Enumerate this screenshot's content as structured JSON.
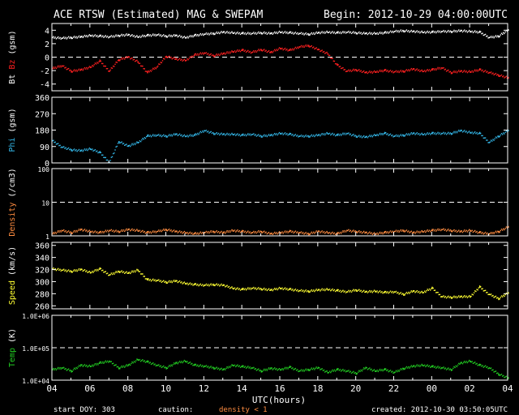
{
  "header": {
    "title": "ACE RTSW (Estimated) MAG & SWEPAM",
    "begin": "Begin: 2012-10-29 04:00:00UTC"
  },
  "footer": {
    "start_doy": "start DOY: 303",
    "caution": "caution:",
    "density_note": "density < 1",
    "created": "created: 2012-10-30 03:50:05UTC"
  },
  "colors": {
    "background": "#000000",
    "frame": "#ffffff",
    "bt": "#ffffff",
    "bz": "#ff2020",
    "phi": "#33b5e5",
    "density": "#ff8c40",
    "speed": "#ffff33",
    "temp": "#22cc22",
    "caution": "#ff8c40"
  },
  "chart_data": {
    "type": "line",
    "xlabel": "UTC(hours)",
    "x_ticks": [
      "04",
      "06",
      "08",
      "10",
      "12",
      "14",
      "16",
      "18",
      "20",
      "22",
      "00",
      "02",
      "04"
    ],
    "x_range_hours": [
      0,
      24
    ],
    "panels": [
      {
        "id": "mag",
        "ylabel_parts": [
          "Bt",
          "Bz",
          "(gsm)"
        ],
        "ylim": [
          -5,
          5
        ],
        "yticks": [
          "4",
          "2",
          "0",
          "-2",
          "-4"
        ],
        "ytick_values": [
          4,
          2,
          0,
          -2,
          -4
        ],
        "dashed_at": [
          0
        ],
        "series": [
          {
            "name": "Bt",
            "color_key": "bt",
            "x": [
              0,
              0.5,
              1,
              1.5,
              2,
              2.5,
              3,
              3.5,
              4,
              4.5,
              5,
              5.5,
              6,
              6.5,
              7,
              7.5,
              8,
              8.5,
              9,
              9.5,
              10,
              10.5,
              11,
              11.5,
              12,
              12.5,
              13,
              13.5,
              14,
              14.5,
              15,
              15.5,
              16,
              16.5,
              17,
              17.5,
              18,
              18.5,
              19,
              19.5,
              20,
              20.5,
              21,
              21.5,
              22,
              22.5,
              23,
              23.5,
              24
            ],
            "y": [
              3.0,
              2.9,
              3.0,
              3.1,
              3.3,
              3.2,
              3.1,
              3.3,
              3.4,
              3.1,
              3.3,
              3.4,
              3.2,
              3.3,
              3.0,
              3.3,
              3.5,
              3.6,
              3.8,
              3.7,
              3.6,
              3.6,
              3.7,
              3.6,
              3.8,
              3.7,
              3.6,
              3.5,
              3.7,
              3.8,
              3.7,
              3.8,
              3.7,
              3.6,
              3.6,
              3.7,
              3.9,
              4.0,
              3.9,
              3.8,
              3.8,
              3.9,
              3.9,
              4.0,
              3.9,
              3.8,
              3.0,
              3.2,
              4.1
            ]
          },
          {
            "name": "Bz",
            "color_key": "bz",
            "x": [
              0,
              0.5,
              1,
              1.5,
              2,
              2.5,
              3,
              3.5,
              4,
              4.5,
              5,
              5.5,
              6,
              6.5,
              7,
              7.5,
              8,
              8.5,
              9,
              9.5,
              10,
              10.5,
              11,
              11.5,
              12,
              12.5,
              13,
              13.5,
              14,
              14.5,
              15,
              15.5,
              16,
              16.5,
              17,
              17.5,
              18,
              18.5,
              19,
              19.5,
              20,
              20.5,
              21,
              21.5,
              22,
              22.5,
              23,
              23.5,
              24
            ],
            "y": [
              -1.6,
              -1.2,
              -2.0,
              -1.8,
              -1.4,
              -0.5,
              -2.0,
              -0.3,
              0.1,
              -0.6,
              -2.2,
              -1.4,
              0.2,
              -0.2,
              -0.4,
              0.4,
              0.7,
              0.3,
              0.6,
              0.9,
              1.1,
              0.8,
              1.2,
              0.8,
              1.4,
              1.1,
              1.6,
              1.8,
              1.2,
              0.6,
              -1.1,
              -2.0,
              -1.8,
              -2.2,
              -2.1,
              -1.9,
              -2.1,
              -2.0,
              -1.7,
              -2.0,
              -1.8,
              -1.5,
              -2.2,
              -2.0,
              -2.1,
              -1.8,
              -2.2,
              -2.6,
              -3.0
            ]
          }
        ]
      },
      {
        "id": "phi",
        "ylabel_parts": [
          "Phi",
          "(gsm)"
        ],
        "ylim": [
          0,
          360
        ],
        "yticks": [
          "360",
          "270",
          "180",
          "90",
          "0"
        ],
        "ytick_values": [
          360,
          270,
          180,
          90,
          0
        ],
        "series": [
          {
            "name": "Phi",
            "color_key": "phi",
            "x": [
              0,
              0.5,
              1,
              1.5,
              2,
              2.5,
              3,
              3.5,
              4,
              4.5,
              5,
              5.5,
              6,
              6.5,
              7,
              7.5,
              8,
              8.5,
              9,
              9.5,
              10,
              10.5,
              11,
              11.5,
              12,
              12.5,
              13,
              13.5,
              14,
              14.5,
              15,
              15.5,
              16,
              16.5,
              17,
              17.5,
              18,
              18.5,
              19,
              19.5,
              20,
              20.5,
              21,
              21.5,
              22,
              22.5,
              23,
              23.5,
              24
            ],
            "y": [
              125,
              90,
              75,
              70,
              80,
              60,
              5,
              120,
              95,
              115,
              150,
              155,
              150,
              160,
              150,
              155,
              180,
              165,
              160,
              160,
              155,
              160,
              150,
              155,
              165,
              160,
              150,
              150,
              155,
              165,
              155,
              165,
              150,
              145,
              155,
              165,
              150,
              155,
              165,
              160,
              165,
              165,
              165,
              180,
              170,
              165,
              115,
              150,
              180
            ]
          }
        ]
      },
      {
        "id": "density",
        "ylabel_parts": [
          "Density",
          "(/cm3)"
        ],
        "ylim": [
          1,
          100
        ],
        "log": true,
        "yticks": [
          "100",
          "10",
          "1"
        ],
        "ytick_values": [
          100,
          10,
          1
        ],
        "dashed_at": [
          10
        ],
        "series": [
          {
            "name": "Density",
            "color_key": "density",
            "x": [
              0,
              0.5,
              1,
              1.5,
              2,
              2.5,
              3,
              3.5,
              4,
              4.5,
              5,
              5.5,
              6,
              6.5,
              7,
              7.5,
              8,
              8.5,
              9,
              9.5,
              10,
              10.5,
              11,
              11.5,
              12,
              12.5,
              13,
              13.5,
              14,
              14.5,
              15,
              15.5,
              16,
              16.5,
              17,
              17.5,
              18,
              18.5,
              19,
              19.5,
              20,
              20.5,
              21,
              21.5,
              22,
              22.5,
              23,
              23.5,
              24
            ],
            "y": [
              1.2,
              1.5,
              1.3,
              1.6,
              1.4,
              1.3,
              1.5,
              1.4,
              1.6,
              1.5,
              1.3,
              1.4,
              1.6,
              1.4,
              1.3,
              1.2,
              1.3,
              1.4,
              1.3,
              1.5,
              1.4,
              1.3,
              1.4,
              1.2,
              1.3,
              1.4,
              1.3,
              1.2,
              1.4,
              1.3,
              1.2,
              1.5,
              1.4,
              1.3,
              1.2,
              1.3,
              1.4,
              1.5,
              1.3,
              1.4,
              1.5,
              1.6,
              1.5,
              1.4,
              1.5,
              1.3,
              1.2,
              1.4,
              1.9
            ]
          }
        ]
      },
      {
        "id": "speed",
        "ylabel_parts": [
          "Speed",
          "(km/s)"
        ],
        "ylim": [
          255,
          365
        ],
        "yticks": [
          "360",
          "340",
          "320",
          "300",
          "280",
          "260"
        ],
        "ytick_values": [
          360,
          340,
          320,
          300,
          280,
          260
        ],
        "series": [
          {
            "name": "Speed",
            "color_key": "speed",
            "x": [
              0,
              0.5,
              1,
              1.5,
              2,
              2.5,
              3,
              3.5,
              4,
              4.5,
              5,
              5.5,
              6,
              6.5,
              7,
              7.5,
              8,
              8.5,
              9,
              9.5,
              10,
              10.5,
              11,
              11.5,
              12,
              12.5,
              13,
              13.5,
              14,
              14.5,
              15,
              15.5,
              16,
              16.5,
              17,
              17.5,
              18,
              18.5,
              19,
              19.5,
              20,
              20.5,
              21,
              21.5,
              22,
              22.5,
              23,
              23.5,
              24
            ],
            "y": [
              322,
              320,
              318,
              321,
              316,
              322,
              312,
              318,
              315,
              320,
              304,
              303,
              300,
              302,
              298,
              296,
              295,
              296,
              295,
              290,
              288,
              290,
              289,
              287,
              290,
              288,
              286,
              285,
              287,
              288,
              286,
              284,
              287,
              284,
              285,
              283,
              284,
              280,
              285,
              283,
              290,
              276,
              275,
              276,
              276,
              292,
              280,
              273,
              282
            ]
          }
        ]
      },
      {
        "id": "temp",
        "ylabel_parts": [
          "Temp",
          "(K)"
        ],
        "ylim": [
          10000,
          1000000
        ],
        "log": true,
        "yticks": [
          "1.0E+06",
          "1.0E+05",
          "1.0E+04"
        ],
        "ytick_values": [
          1000000,
          100000,
          10000
        ],
        "dashed_at": [
          100000
        ],
        "series": [
          {
            "name": "Temp",
            "color_key": "temp",
            "x": [
              0,
              0.5,
              1,
              1.5,
              2,
              2.5,
              3,
              3.5,
              4,
              4.5,
              5,
              5.5,
              6,
              6.5,
              7,
              7.5,
              8,
              8.5,
              9,
              9.5,
              10,
              10.5,
              11,
              11.5,
              12,
              12.5,
              13,
              13.5,
              14,
              14.5,
              15,
              15.5,
              16,
              16.5,
              17,
              17.5,
              18,
              18.5,
              19,
              19.5,
              20,
              20.5,
              21,
              21.5,
              22,
              22.5,
              23,
              23.5,
              24
            ],
            "y": [
              22000,
              25000,
              20000,
              30000,
              28000,
              35000,
              40000,
              25000,
              30000,
              45000,
              38000,
              30000,
              25000,
              35000,
              40000,
              30000,
              28000,
              25000,
              22000,
              30000,
              27000,
              25000,
              20000,
              24000,
              22000,
              26000,
              20000,
              22000,
              25000,
              18000,
              22000,
              20000,
              17000,
              25000,
              20000,
              22000,
              18000,
              24000,
              28000,
              30000,
              27000,
              25000,
              22000,
              35000,
              40000,
              30000,
              25000,
              16000,
              12000
            ]
          }
        ]
      }
    ]
  }
}
